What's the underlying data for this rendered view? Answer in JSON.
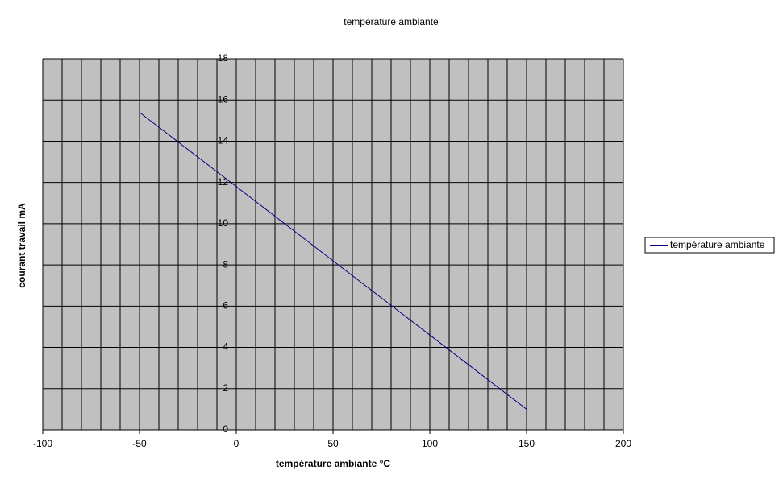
{
  "chart_data": {
    "type": "line",
    "title": "température ambiante",
    "x_label": "température ambiante °C",
    "y_label": "courant travail mA",
    "x": [
      -50,
      0,
      50,
      100,
      150
    ],
    "series": [
      {
        "name": "température ambiante",
        "color": "#000080",
        "values": [
          15.4,
          11.8,
          8.2,
          4.6,
          1.0
        ]
      }
    ],
    "xlim": [
      -100,
      200
    ],
    "xticks": [
      -100,
      -50,
      0,
      50,
      100,
      150,
      200
    ],
    "xgrid": [
      -100,
      -90,
      -80,
      -70,
      -60,
      -50,
      -40,
      -30,
      -20,
      -10,
      0,
      10,
      20,
      30,
      40,
      50,
      60,
      70,
      80,
      90,
      100,
      110,
      120,
      130,
      140,
      150,
      160,
      170,
      180,
      190,
      200
    ],
    "ylim": [
      0,
      18
    ],
    "yticks": [
      0,
      2,
      4,
      6,
      8,
      10,
      12,
      14,
      16,
      18
    ],
    "grid": true,
    "legend": "right",
    "plot_background": "#c0c0c0"
  }
}
